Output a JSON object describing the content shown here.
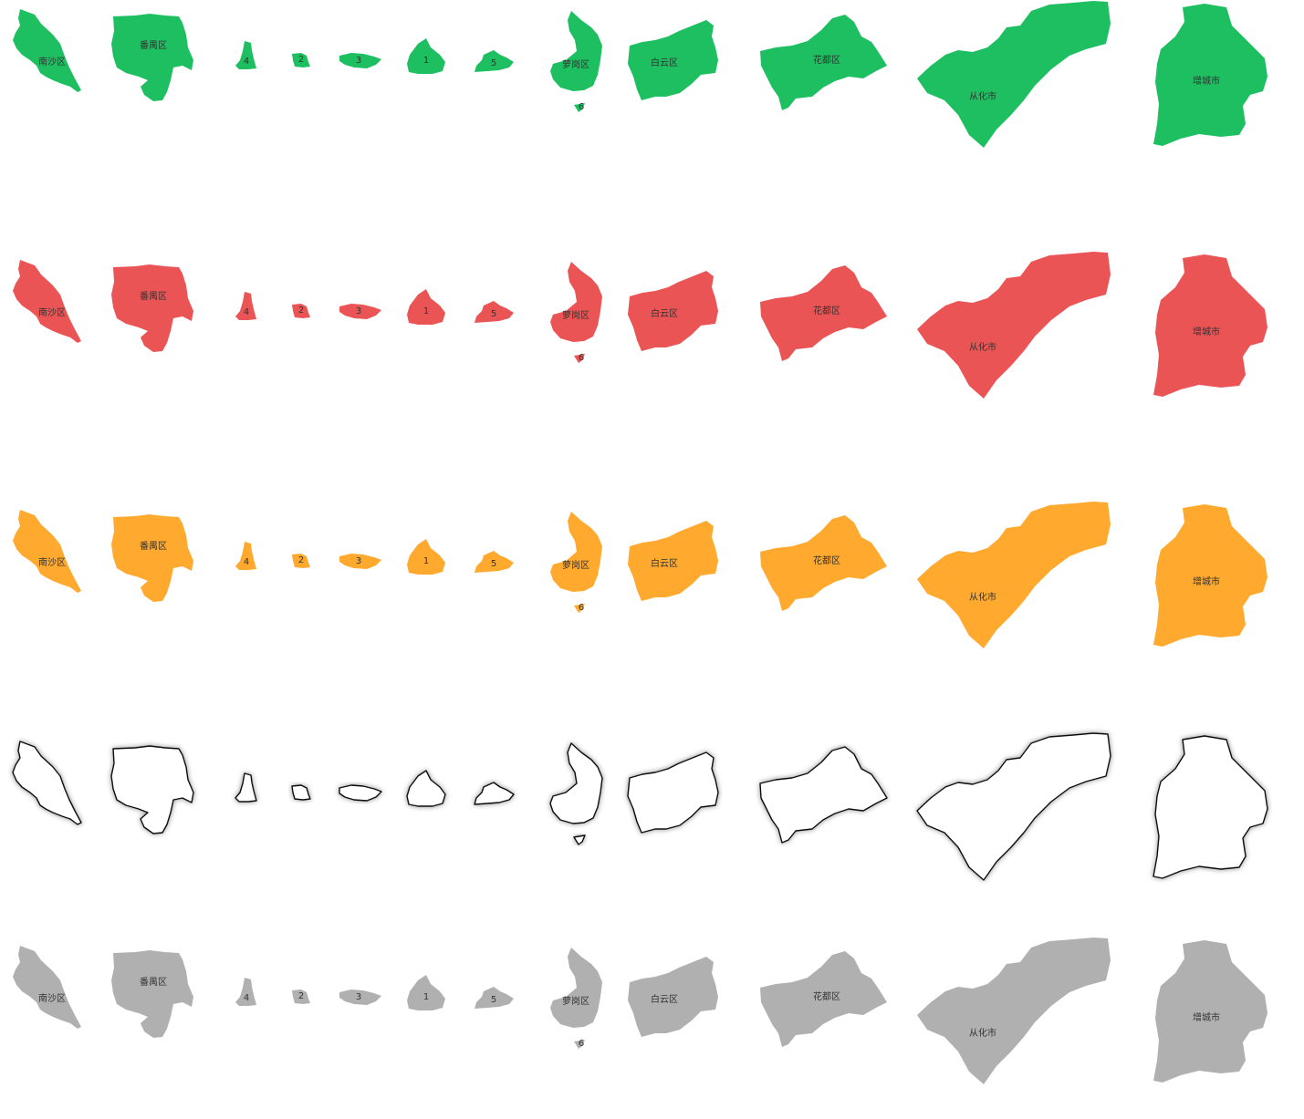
{
  "legend_groups": [
    {
      "id": "green",
      "fill": "#1dbf61",
      "stroke": "none",
      "shadow": false,
      "show_labels": true
    },
    {
      "id": "red",
      "fill": "#eb5455",
      "stroke": "none",
      "shadow": false,
      "show_labels": true
    },
    {
      "id": "orange",
      "fill": "#ffa92e",
      "stroke": "none",
      "shadow": false,
      "show_labels": true
    },
    {
      "id": "outline",
      "fill": "#ffffff",
      "stroke": "#111111",
      "shadow": true,
      "show_labels": false
    },
    {
      "id": "gray",
      "fill": "#b0b0b0",
      "stroke": "none",
      "shadow": false,
      "show_labels": true
    }
  ],
  "districts": [
    {
      "id": "nansha",
      "label": "南沙区"
    },
    {
      "id": "panyu",
      "label": "番禺区"
    },
    {
      "id": "d4",
      "label": "4"
    },
    {
      "id": "d2",
      "label": "2"
    },
    {
      "id": "d3",
      "label": "3"
    },
    {
      "id": "d1",
      "label": "1"
    },
    {
      "id": "d5",
      "label": "5"
    },
    {
      "id": "huangpu",
      "label": "萝岗区"
    },
    {
      "id": "d6",
      "label": "6"
    },
    {
      "id": "baiyun",
      "label": "白云区"
    },
    {
      "id": "huadu",
      "label": "花都区"
    },
    {
      "id": "conghua",
      "label": "从化市"
    },
    {
      "id": "zengcheng",
      "label": "增城市"
    }
  ]
}
